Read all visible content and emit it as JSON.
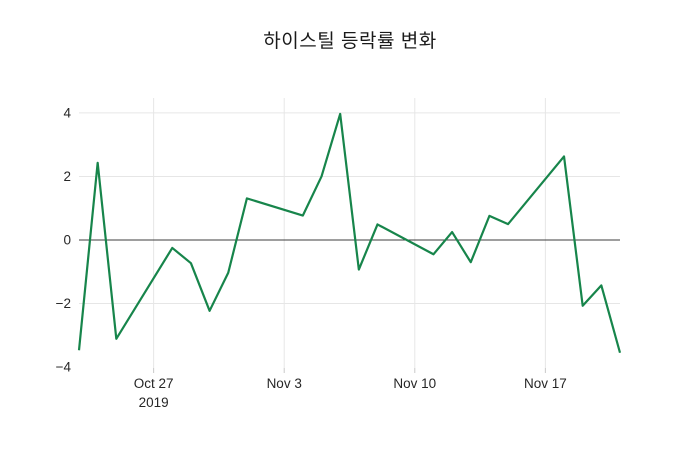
{
  "chart_data": {
    "type": "line",
    "title": "하이스틸 등락률 변화",
    "x": [
      "2019-10-23",
      "2019-10-24",
      "2019-10-25",
      "2019-10-28",
      "2019-10-29",
      "2019-10-30",
      "2019-10-31",
      "2019-11-01",
      "2019-11-04",
      "2019-11-05",
      "2019-11-06",
      "2019-11-07",
      "2019-11-08",
      "2019-11-11",
      "2019-11-12",
      "2019-11-13",
      "2019-11-14",
      "2019-11-15",
      "2019-11-18",
      "2019-11-19",
      "2019-11-20",
      "2019-11-21"
    ],
    "values": [
      -3.47,
      2.43,
      -3.11,
      -0.25,
      -0.73,
      -2.23,
      -1.03,
      1.31,
      0.77,
      2.0,
      3.97,
      -0.93,
      0.49,
      -0.45,
      0.25,
      -0.7,
      0.76,
      0.5,
      2.63,
      -2.07,
      -1.43,
      -3.55
    ],
    "xlabel": "",
    "ylabel": "",
    "ylim": [
      -4.03,
      4.47
    ],
    "yticks": [
      -4,
      -2,
      0,
      2,
      4
    ],
    "xticks": [
      {
        "date": "2019-10-27",
        "label": "Oct 27",
        "sublabel": "2019"
      },
      {
        "date": "2019-11-03",
        "label": "Nov 3",
        "sublabel": ""
      },
      {
        "date": "2019-11-10",
        "label": "Nov 10",
        "sublabel": ""
      },
      {
        "date": "2019-11-17",
        "label": "Nov 17",
        "sublabel": ""
      }
    ],
    "grid": true,
    "legend": false,
    "zero_line": true
  },
  "colors": {
    "line": "#17854b",
    "grid": "#e6e6e6",
    "tick_mark": "#c9c9c9",
    "zero_line": "#3d3d3d",
    "tick_text": "#262626",
    "title_text": "#1a1a1a",
    "background": "#ffffff"
  }
}
